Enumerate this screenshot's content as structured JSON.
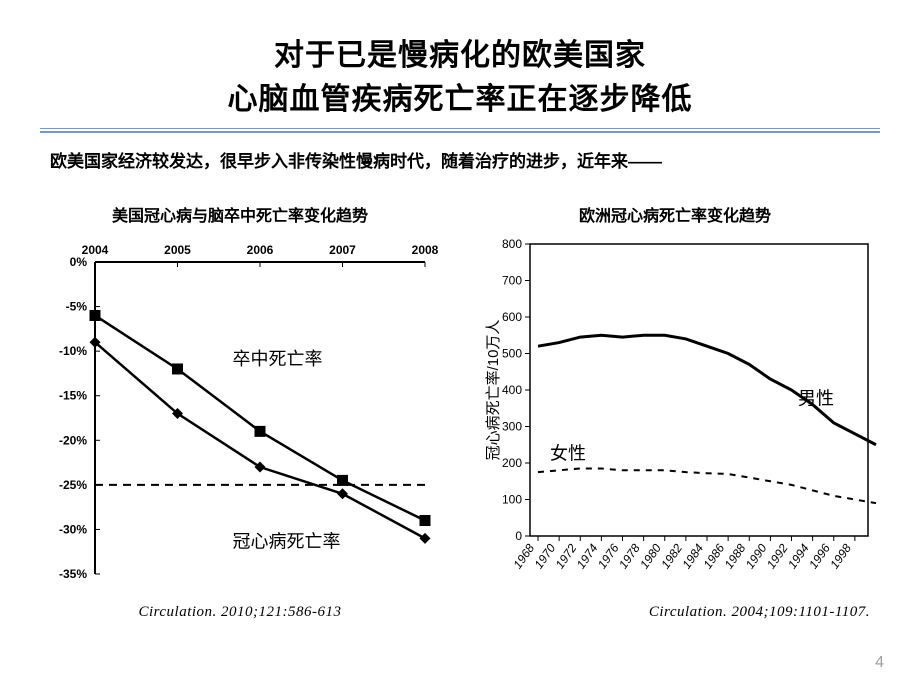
{
  "title": {
    "line1": "对于已是慢病化的欧美国家",
    "line2": "心脑血管疾病死亡率正在逐步降低",
    "fontsize": 30,
    "color": "#000000"
  },
  "subtitle": {
    "text": "欧美国家经济较发达，很早步入非传染性慢病时代，随着治疗的进步，近年来——",
    "fontsize": 17
  },
  "left_chart": {
    "title": "美国冠心病与脑卒中死亡率变化趋势",
    "title_fontsize": 16,
    "type": "line",
    "x_categories": [
      "2004",
      "2005",
      "2006",
      "2007",
      "2008"
    ],
    "y_ticks": [
      "0%",
      "-5%",
      "-10%",
      "-15%",
      "-20%",
      "-25%",
      "-30%",
      "-35%"
    ],
    "ylim": [
      -35,
      0
    ],
    "series": {
      "stroke": {
        "label": "卒中死亡率",
        "marker": "square",
        "color": "#000000",
        "values": [
          -6,
          -12,
          -19,
          -24.5,
          -29
        ]
      },
      "chd": {
        "label": "冠心病死亡率",
        "marker": "diamond",
        "color": "#000000",
        "values": [
          -9,
          -17,
          -23,
          -26,
          -31
        ]
      }
    },
    "ref_line_y": -25,
    "line_width": 2.5,
    "marker_size": 7,
    "background_color": "#ffffff",
    "border_color": "#000000",
    "citation": "Circulation. 2010;121:586-613"
  },
  "right_chart": {
    "title": "欧洲冠心病死亡率变化趋势",
    "title_fontsize": 16,
    "type": "line",
    "y_label": "冠心病死亡率/10万人",
    "x_ticks": [
      "1968",
      "1970",
      "1972",
      "1974",
      "1976",
      "1978",
      "1980",
      "1982",
      "1984",
      "1986",
      "1988",
      "1990",
      "1992",
      "1994",
      "1996",
      "1998"
    ],
    "y_ticks": [
      0,
      100,
      200,
      300,
      400,
      500,
      600,
      700,
      800
    ],
    "ylim": [
      0,
      800
    ],
    "series": {
      "male": {
        "label": "男性",
        "style": "solid",
        "color": "#000000",
        "line_width": 3,
        "values": [
          520,
          530,
          545,
          550,
          545,
          550,
          550,
          540,
          520,
          500,
          470,
          430,
          400,
          360,
          310,
          280,
          250
        ]
      },
      "female": {
        "label": "女性",
        "style": "dashed",
        "color": "#000000",
        "line_width": 2,
        "values": [
          175,
          180,
          185,
          185,
          180,
          180,
          180,
          175,
          172,
          170,
          160,
          150,
          140,
          125,
          110,
          100,
          90
        ]
      }
    },
    "background_color": "#ffffff",
    "border_color": "#000000",
    "citation": "Circulation. 2004;109:1101-1107."
  },
  "page_number": "4",
  "colors": {
    "rule": "#7a98c4",
    "page_num": "#9aa0a6"
  }
}
